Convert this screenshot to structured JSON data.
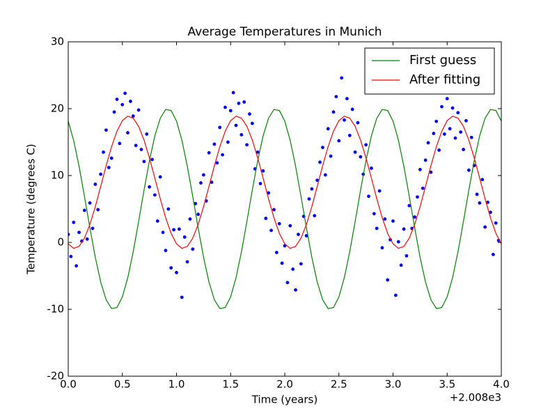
{
  "chart_data": {
    "type": "line",
    "title": "Average Temperatures in Munich",
    "x_label": "Time (years)",
    "y_label": "Temperature (degrees C)",
    "x_offset_label": "+2.008e3",
    "xlim": [
      0,
      4
    ],
    "ylim": [
      -20,
      30
    ],
    "xticks": [
      {
        "value": 0,
        "label": "0.0"
      },
      {
        "value": 0.5,
        "label": "0.5"
      },
      {
        "value": 1,
        "label": "1.0"
      },
      {
        "value": 1.5,
        "label": "1.5"
      },
      {
        "value": 2,
        "label": "2.0"
      },
      {
        "value": 2.5,
        "label": "2.5"
      },
      {
        "value": 3,
        "label": "3.0"
      },
      {
        "value": 3.5,
        "label": "3.5"
      },
      {
        "value": 4,
        "label": "4.0"
      }
    ],
    "yticks": [
      -20,
      -10,
      0,
      10,
      20,
      30
    ],
    "legend": "upper right",
    "x": [
      0,
      0.05,
      0.1,
      0.15,
      0.2,
      0.25,
      0.3,
      0.35,
      0.4,
      0.45,
      0.5,
      0.55,
      0.6,
      0.65,
      0.7,
      0.75,
      0.8,
      0.85,
      0.9,
      0.95,
      1,
      1.05,
      1.1,
      1.15,
      1.2,
      1.25,
      1.3,
      1.35,
      1.4,
      1.45,
      1.5,
      1.55,
      1.6,
      1.65,
      1.7,
      1.75,
      1.8,
      1.85,
      1.9,
      1.95,
      2,
      2.05,
      2.1,
      2.15,
      2.2,
      2.25,
      2.3,
      2.35,
      2.4,
      2.45,
      2.5,
      2.55,
      2.6,
      2.65,
      2.7,
      2.75,
      2.8,
      2.85,
      2.9,
      2.95,
      3,
      3.05,
      3.1,
      3.15,
      3.2,
      3.25,
      3.3,
      3.35,
      3.4,
      3.45,
      3.5,
      3.55,
      3.6,
      3.65,
      3.7,
      3.75,
      3.8,
      3.85,
      3.9,
      3.95,
      4
    ],
    "series": [
      {
        "name": "First guess",
        "color": "#008000",
        "values": [
          18.14,
          15.27,
          11.39,
          6.88,
          2.19,
          -2.23,
          -5.93,
          -8.57,
          -9.88,
          -9.73,
          -8.14,
          -5.27,
          -1.39,
          3.12,
          7.81,
          12.23,
          15.93,
          18.57,
          19.88,
          19.73,
          18.14,
          15.27,
          11.39,
          6.88,
          2.19,
          -2.23,
          -5.93,
          -8.57,
          -9.88,
          -9.73,
          -8.14,
          -5.27,
          -1.39,
          3.12,
          7.81,
          12.23,
          15.93,
          18.57,
          19.88,
          19.73,
          18.14,
          15.27,
          11.39,
          6.88,
          2.19,
          -2.23,
          -5.93,
          -8.57,
          -9.88,
          -9.73,
          -8.14,
          -5.27,
          -1.39,
          3.12,
          7.81,
          12.23,
          15.93,
          18.57,
          19.88,
          19.73,
          18.14,
          15.27,
          11.39,
          6.88,
          2.19,
          -2.23,
          -5.93,
          -8.57,
          -9.88,
          -9.73,
          -8.14,
          -5.27,
          -1.39,
          3.12,
          7.81,
          12.23,
          15.93,
          18.57,
          19.88,
          19.73,
          18.14
        ]
      },
      {
        "name": "After fitting",
        "color": "#ff0000",
        "values": [
          -0.21,
          -0.88,
          -0.59,
          0.64,
          2.69,
          5.36,
          8.38,
          11.47,
          14.31,
          16.63,
          18.21,
          18.88,
          18.59,
          17.36,
          15.31,
          12.64,
          9.62,
          6.53,
          3.69,
          1.37,
          -0.21,
          -0.88,
          -0.59,
          0.64,
          2.69,
          5.36,
          8.38,
          11.47,
          14.31,
          16.63,
          18.21,
          18.88,
          18.59,
          17.36,
          15.31,
          12.64,
          9.62,
          6.53,
          3.69,
          1.37,
          -0.21,
          -0.88,
          -0.59,
          0.64,
          2.69,
          5.36,
          8.38,
          11.47,
          14.31,
          16.63,
          18.21,
          18.88,
          18.59,
          17.36,
          15.31,
          12.64,
          9.62,
          6.53,
          3.69,
          1.37,
          -0.21,
          -0.88,
          -0.59,
          0.64,
          2.69,
          5.36,
          8.38,
          11.47,
          14.31,
          16.63,
          18.21,
          18.88,
          18.59,
          17.36,
          15.31,
          12.64,
          9.62,
          6.53,
          3.69,
          1.37,
          -0.21
        ]
      }
    ],
    "scatter": {
      "color": "#0000ff",
      "x": [
        0,
        0.025,
        0.05,
        0.075,
        0.1,
        0.125,
        0.15,
        0.175,
        0.2,
        0.225,
        0.25,
        0.275,
        0.3,
        0.325,
        0.35,
        0.375,
        0.4,
        0.425,
        0.45,
        0.475,
        0.5,
        0.525,
        0.55,
        0.575,
        0.6,
        0.625,
        0.65,
        0.675,
        0.7,
        0.725,
        0.75,
        0.775,
        0.8,
        0.825,
        0.85,
        0.875,
        0.9,
        0.925,
        0.95,
        0.975,
        1,
        1.025,
        1.05,
        1.075,
        1.1,
        1.125,
        1.15,
        1.175,
        1.2,
        1.225,
        1.25,
        1.275,
        1.3,
        1.325,
        1.35,
        1.375,
        1.4,
        1.425,
        1.45,
        1.475,
        1.5,
        1.525,
        1.55,
        1.575,
        1.6,
        1.625,
        1.65,
        1.675,
        1.7,
        1.725,
        1.75,
        1.775,
        1.8,
        1.825,
        1.85,
        1.875,
        1.9,
        1.925,
        1.95,
        1.975,
        2,
        2.025,
        2.05,
        2.075,
        2.1,
        2.125,
        2.15,
        2.175,
        2.2,
        2.225,
        2.25,
        2.275,
        2.3,
        2.325,
        2.35,
        2.375,
        2.4,
        2.425,
        2.45,
        2.475,
        2.5,
        2.525,
        2.55,
        2.575,
        2.6,
        2.625,
        2.65,
        2.675,
        2.7,
        2.725,
        2.75,
        2.775,
        2.8,
        2.825,
        2.85,
        2.875,
        2.9,
        2.925,
        2.95,
        2.975,
        3,
        3.025,
        3.05,
        3.075,
        3.1,
        3.125,
        3.15,
        3.175,
        3.2,
        3.225,
        3.25,
        3.275,
        3.3,
        3.325,
        3.35,
        3.375,
        3.4,
        3.425,
        3.45,
        3.475,
        3.5,
        3.525,
        3.55,
        3.575,
        3.6,
        3.625,
        3.65,
        3.675,
        3.7,
        3.725,
        3.75,
        3.775,
        3.8,
        3.825,
        3.85,
        3.875,
        3.9,
        3.925,
        3.95,
        3.975
      ],
      "values": [
        1.2,
        -2.1,
        3.0,
        -3.5,
        1.5,
        0.2,
        4.8,
        0.5,
        5.9,
        2.1,
        8.7,
        4.9,
        10.2,
        13.5,
        16.8,
        11.2,
        12.6,
        19.5,
        21.4,
        14.8,
        20.6,
        22.3,
        16.4,
        21.1,
        18.9,
        14.5,
        19.8,
        13.9,
        12.1,
        16.2,
        8.3,
        12.4,
        7.1,
        3.2,
        9.8,
        1.5,
        -1.2,
        5.0,
        -3.8,
        1.9,
        -4.5,
        2.0,
        -8.2,
        0.8,
        -2.9,
        3.5,
        -1.0,
        5.8,
        4.2,
        8.9,
        10.1,
        6.2,
        13.4,
        9.0,
        14.7,
        11.9,
        17.2,
        13.1,
        20.2,
        15.0,
        19.7,
        22.4,
        17.5,
        20.8,
        16.1,
        21.0,
        14.6,
        19.2,
        17.8,
        11.0,
        13.5,
        8.8,
        10.7,
        3.6,
        7.4,
        1.8,
        4.9,
        -1.5,
        2.8,
        -3.1,
        -0.5,
        -6.0,
        2.5,
        -4.0,
        -7.1,
        1.2,
        -3.2,
        3.9,
        1.0,
        6.5,
        8.0,
        4.0,
        9.3,
        12.0,
        14.2,
        10.1,
        17.0,
        12.9,
        19.5,
        21.8,
        15.2,
        24.6,
        18.3,
        21.5,
        16.0,
        19.9,
        13.5,
        17.9,
        12.8,
        10.2,
        14.6,
        6.9,
        11.1,
        4.3,
        2.1,
        7.7,
        -0.8,
        3.5,
        -5.6,
        0.4,
        3.2,
        -7.9,
        0.1,
        -3.4,
        2.0,
        -2.0,
        5.5,
        2.1,
        3.8,
        6.8,
        10.9,
        8.1,
        12.3,
        14.9,
        10.5,
        16.3,
        18.1,
        13.8,
        20.3,
        16.2,
        21.5,
        17.0,
        20.1,
        15.6,
        19.4,
        16.5,
        13.9,
        18.2,
        10.8,
        15.7,
        11.5,
        7.2,
        5.9,
        9.4,
        2.3,
        6.0,
        4.5,
        -1.8,
        2.9,
        0.3
      ]
    }
  }
}
